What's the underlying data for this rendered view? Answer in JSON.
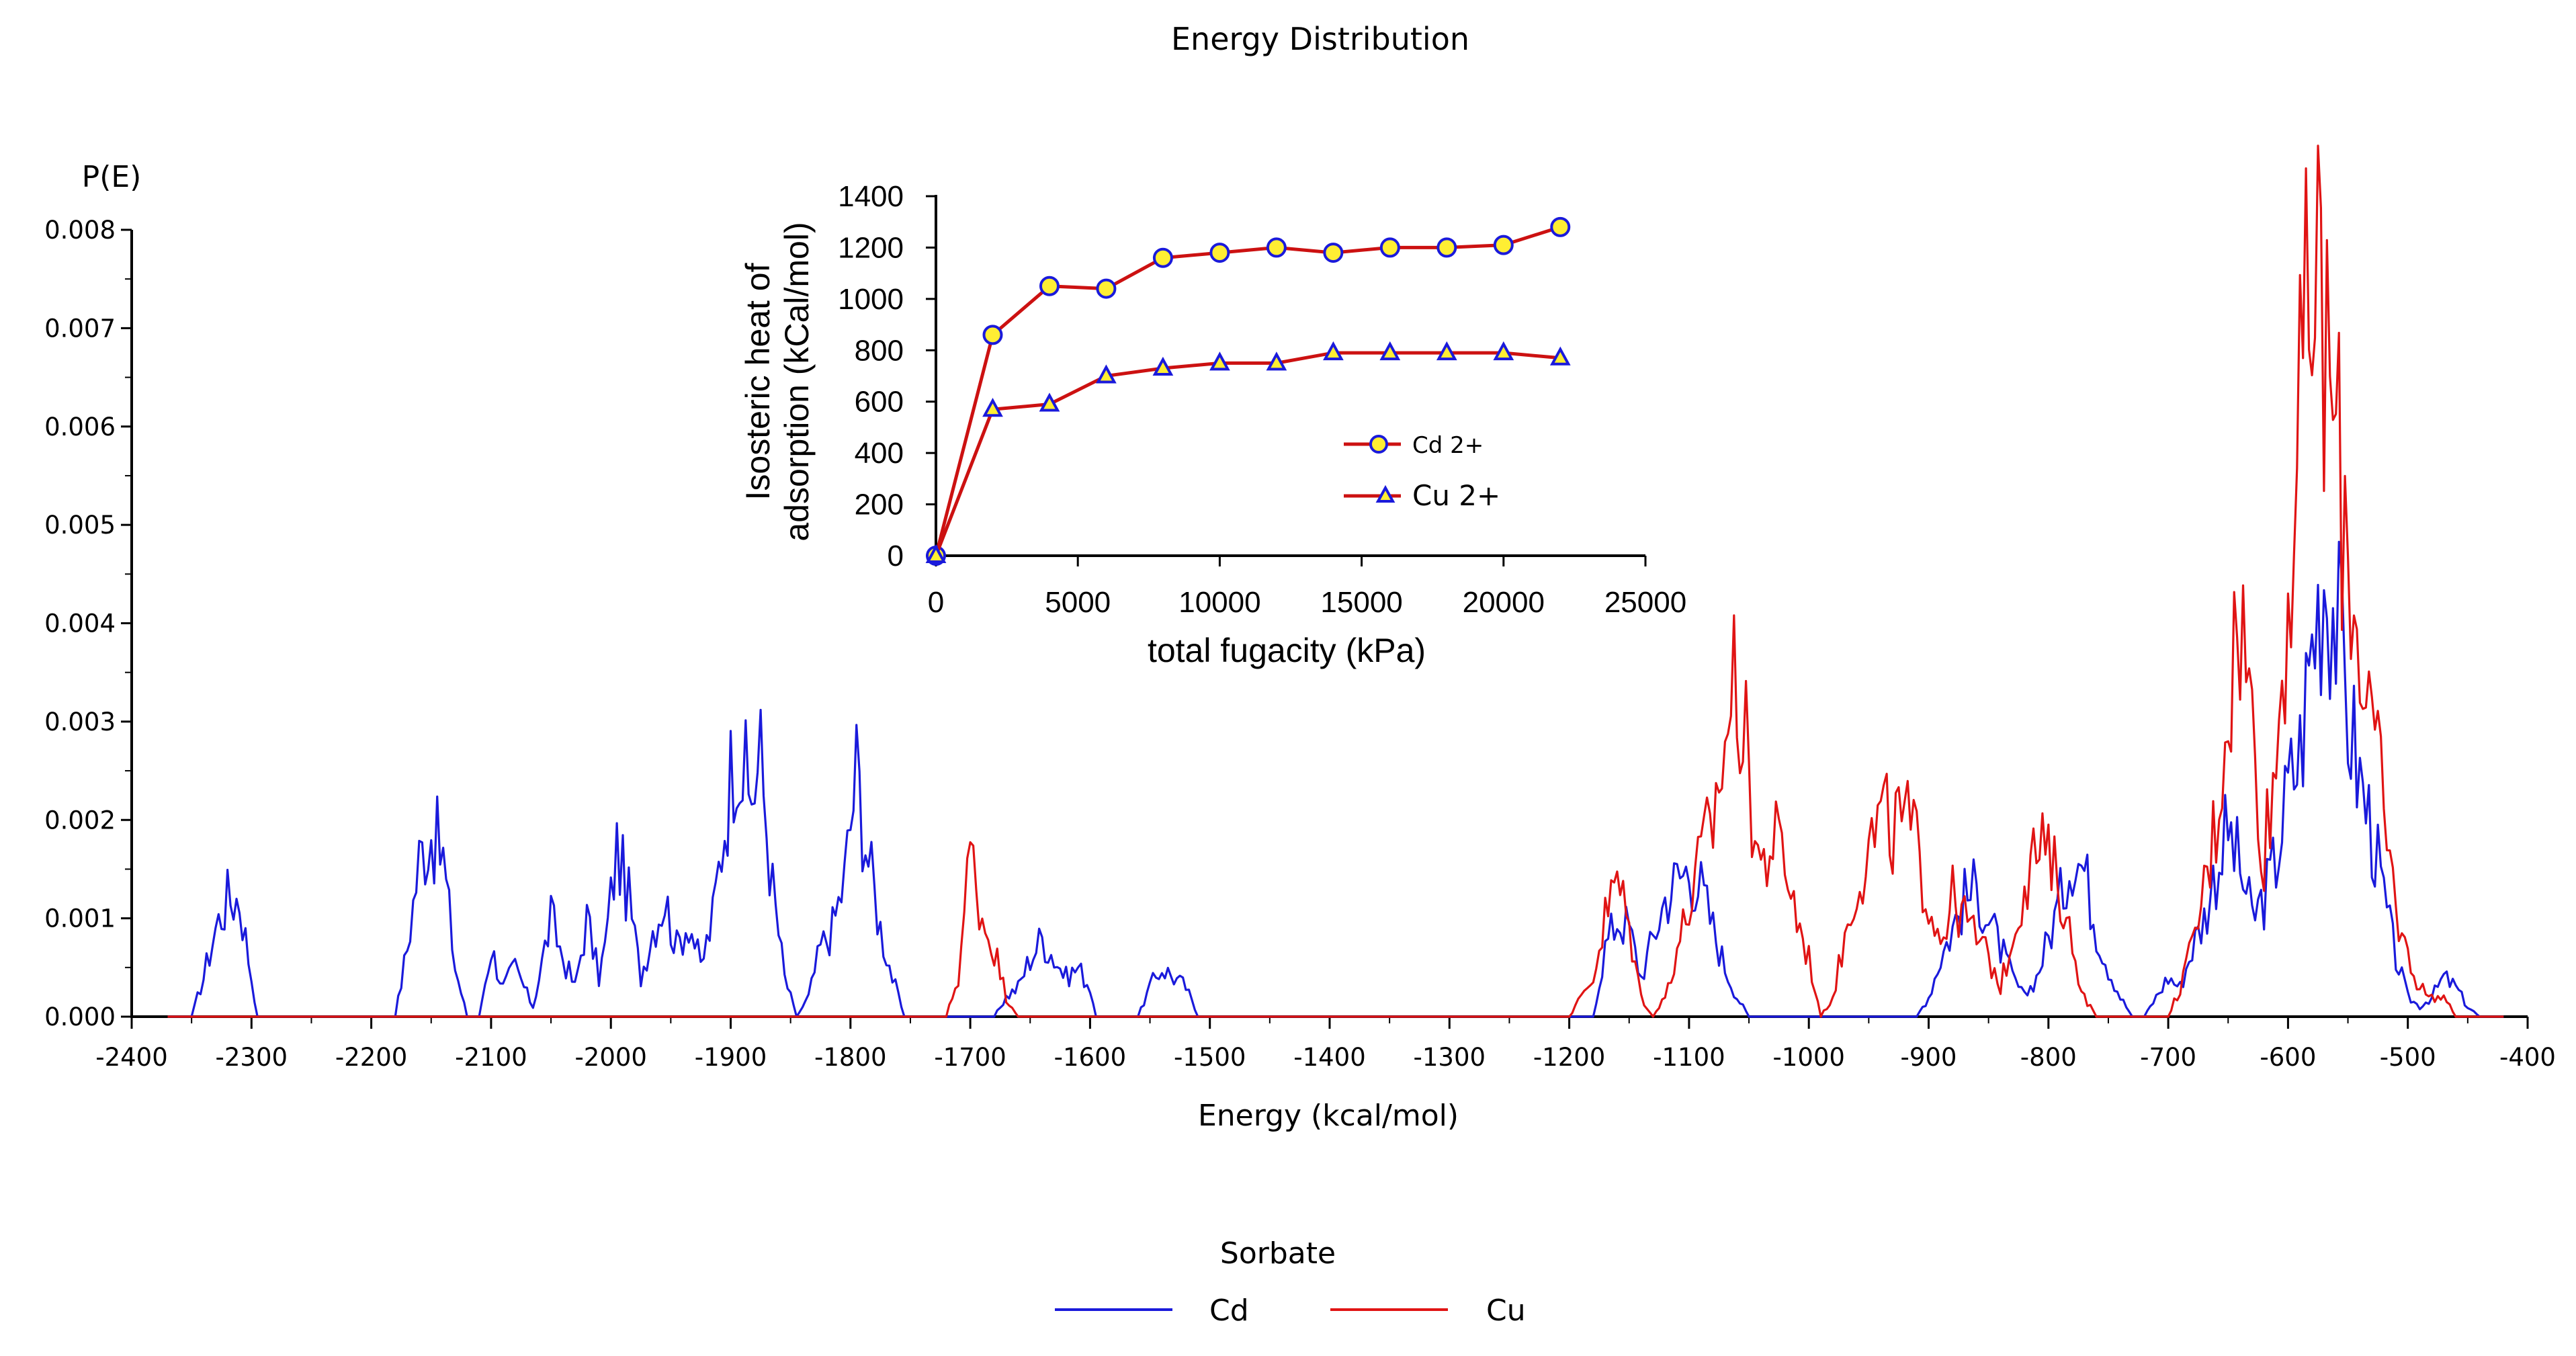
{
  "chart_data": [
    {
      "type": "line",
      "title": "Energy Distribution",
      "xlabel": "Energy (kcal/mol)",
      "ylabel": "P(E)",
      "xlim": [
        -2400,
        -400
      ],
      "ylim": [
        0,
        0.008
      ],
      "x_ticks": [
        -2400,
        -2300,
        -2200,
        -2100,
        -2000,
        -1900,
        -1800,
        -1700,
        -1600,
        -1500,
        -1400,
        -1300,
        -1200,
        -1100,
        -1000,
        -900,
        -800,
        -700,
        -600,
        -500,
        -400
      ],
      "y_ticks": [
        0,
        0.001,
        0.002,
        0.003,
        0.004,
        0.005,
        0.006,
        0.007,
        0.008
      ],
      "y_tick_labels": [
        "0.000",
        "0.001",
        "0.002",
        "0.003",
        "0.004",
        "0.005",
        "0.006",
        "0.007",
        "0.008"
      ],
      "grid": false,
      "legend": {
        "title": "Sorbate",
        "position": "bottom-center",
        "entries": [
          "Cd",
          "Cu"
        ]
      },
      "series": [
        {
          "name": "Cd",
          "color": "#1a1adb",
          "peaks": [
            [
              -2350,
              0.0
            ],
            [
              -2340,
              0.0004
            ],
            [
              -2330,
              0.0009
            ],
            [
              -2320,
              0.0012
            ],
            [
              -2310,
              0.0012
            ],
            [
              -2300,
              0.0004
            ],
            [
              -2295,
              0.0
            ],
            [
              -2180,
              0.0
            ],
            [
              -2170,
              0.0007
            ],
            [
              -2160,
              0.0016
            ],
            [
              -2150,
              0.0019
            ],
            [
              -2140,
              0.0016
            ],
            [
              -2130,
              0.0005
            ],
            [
              -2120,
              0.0
            ],
            [
              -2110,
              0.0
            ],
            [
              -2100,
              0.0007
            ],
            [
              -2090,
              0.0003
            ],
            [
              -2080,
              0.0005
            ],
            [
              -2065,
              0.0001
            ],
            [
              -2060,
              0.0004
            ],
            [
              -2050,
              0.001
            ],
            [
              -2040,
              0.0006
            ],
            [
              -2030,
              0.0003
            ],
            [
              -2020,
              0.001
            ],
            [
              -2010,
              0.0004
            ],
            [
              -2005,
              0.0007
            ],
            [
              -1995,
              0.0017
            ],
            [
              -1985,
              0.0012
            ],
            [
              -1975,
              0.0004
            ],
            [
              -1965,
              0.0009
            ],
            [
              -1955,
              0.0012
            ],
            [
              -1945,
              0.0007
            ],
            [
              -1935,
              0.001
            ],
            [
              -1925,
              0.0005
            ],
            [
              -1915,
              0.001
            ],
            [
              -1905,
              0.002
            ],
            [
              -1895,
              0.0029
            ],
            [
              -1885,
              0.0022
            ],
            [
              -1875,
              0.0026
            ],
            [
              -1865,
              0.0013
            ],
            [
              -1855,
              0.0004
            ],
            [
              -1845,
              0.0
            ],
            [
              -1835,
              0.0002
            ],
            [
              -1825,
              0.0007
            ],
            [
              -1815,
              0.0009
            ],
            [
              -1805,
              0.0014
            ],
            [
              -1795,
              0.0025
            ],
            [
              -1785,
              0.0016
            ],
            [
              -1775,
              0.0009
            ],
            [
              -1765,
              0.0004
            ],
            [
              -1755,
              0.0
            ],
            [
              -1680,
              0.0
            ],
            [
              -1670,
              0.0002
            ],
            [
              -1660,
              0.0003
            ],
            [
              -1650,
              0.0006
            ],
            [
              -1640,
              0.0008
            ],
            [
              -1630,
              0.0006
            ],
            [
              -1620,
              0.0004
            ],
            [
              -1610,
              0.0005
            ],
            [
              -1600,
              0.0003
            ],
            [
              -1595,
              0.0
            ],
            [
              -1560,
              0.0
            ],
            [
              -1550,
              0.0003
            ],
            [
              -1540,
              0.0005
            ],
            [
              -1530,
              0.0004
            ],
            [
              -1520,
              0.0003
            ],
            [
              -1510,
              0.0
            ],
            [
              -1180,
              0.0
            ],
            [
              -1170,
              0.0007
            ],
            [
              -1160,
              0.001
            ],
            [
              -1150,
              0.0009
            ],
            [
              -1140,
              0.0004
            ],
            [
              -1130,
              0.0008
            ],
            [
              -1120,
              0.0012
            ],
            [
              -1110,
              0.0014
            ],
            [
              -1100,
              0.0015
            ],
            [
              -1090,
              0.0013
            ],
            [
              -1080,
              0.0009
            ],
            [
              -1070,
              0.0005
            ],
            [
              -1060,
              0.0002
            ],
            [
              -1050,
              0.0
            ],
            [
              -910,
              0.0
            ],
            [
              -900,
              0.0002
            ],
            [
              -890,
              0.0006
            ],
            [
              -880,
              0.0009
            ],
            [
              -870,
              0.0012
            ],
            [
              -860,
              0.0013
            ],
            [
              -850,
              0.001
            ],
            [
              -840,
              0.0007
            ],
            [
              -830,
              0.0004
            ],
            [
              -820,
              0.0002
            ],
            [
              -810,
              0.0004
            ],
            [
              -800,
              0.0008
            ],
            [
              -790,
              0.0012
            ],
            [
              -780,
              0.0017
            ],
            [
              -770,
              0.0015
            ],
            [
              -760,
              0.0009
            ],
            [
              -750,
              0.0005
            ],
            [
              -740,
              0.0002
            ],
            [
              -730,
              0.0
            ],
            [
              -720,
              0.0
            ],
            [
              -710,
              0.0002
            ],
            [
              -700,
              0.0004
            ],
            [
              -690,
              0.0003
            ],
            [
              -680,
              0.0007
            ],
            [
              -670,
              0.001
            ],
            [
              -660,
              0.0015
            ],
            [
              -650,
              0.0019
            ],
            [
              -640,
              0.0015
            ],
            [
              -630,
              0.001
            ],
            [
              -620,
              0.0012
            ],
            [
              -610,
              0.0016
            ],
            [
              -600,
              0.0023
            ],
            [
              -590,
              0.0027
            ],
            [
              -580,
              0.0038
            ],
            [
              -570,
              0.0046
            ],
            [
              -560,
              0.0041
            ],
            [
              -550,
              0.0031
            ],
            [
              -540,
              0.0024
            ],
            [
              -530,
              0.0019
            ],
            [
              -520,
              0.0012
            ],
            [
              -510,
              0.0006
            ],
            [
              -500,
              0.0002
            ],
            [
              -490,
              0.0001
            ],
            [
              -480,
              0.0002
            ],
            [
              -470,
              0.0004
            ],
            [
              -460,
              0.0003
            ],
            [
              -450,
              0.0001
            ],
            [
              -440,
              0.0
            ],
            [
              -420,
              0.0
            ]
          ]
        },
        {
          "name": "Cu",
          "color": "#e01414",
          "peaks": [
            [
              -1720,
              0.0
            ],
            [
              -1710,
              0.0004
            ],
            [
              -1700,
              0.0017
            ],
            [
              -1690,
              0.001
            ],
            [
              -1680,
              0.0007
            ],
            [
              -1670,
              0.0002
            ],
            [
              -1660,
              0.0
            ],
            [
              -1200,
              0.0
            ],
            [
              -1190,
              0.0002
            ],
            [
              -1180,
              0.0004
            ],
            [
              -1170,
              0.001
            ],
            [
              -1160,
              0.0014
            ],
            [
              -1150,
              0.0009
            ],
            [
              -1140,
              0.0002
            ],
            [
              -1130,
              0.0
            ],
            [
              -1120,
              0.0002
            ],
            [
              -1110,
              0.0007
            ],
            [
              -1100,
              0.0011
            ],
            [
              -1090,
              0.0016
            ],
            [
              -1080,
              0.002
            ],
            [
              -1070,
              0.0028
            ],
            [
              -1060,
              0.0035
            ],
            [
              -1050,
              0.0024
            ],
            [
              -1040,
              0.0015
            ],
            [
              -1030,
              0.0018
            ],
            [
              -1020,
              0.0016
            ],
            [
              -1010,
              0.001
            ],
            [
              -1000,
              0.0006
            ],
            [
              -990,
              0.0
            ],
            [
              -980,
              0.0002
            ],
            [
              -970,
              0.0008
            ],
            [
              -960,
              0.0014
            ],
            [
              -950,
              0.0017
            ],
            [
              -940,
              0.002
            ],
            [
              -930,
              0.0019
            ],
            [
              -920,
              0.002
            ],
            [
              -910,
              0.0017
            ],
            [
              -900,
              0.0012
            ],
            [
              -890,
              0.0008
            ],
            [
              -880,
              0.0012
            ],
            [
              -870,
              0.001
            ],
            [
              -860,
              0.0008
            ],
            [
              -850,
              0.0006
            ],
            [
              -840,
              0.0003
            ],
            [
              -830,
              0.0008
            ],
            [
              -820,
              0.0014
            ],
            [
              -810,
              0.0017
            ],
            [
              -800,
              0.0016
            ],
            [
              -790,
              0.0013
            ],
            [
              -780,
              0.0007
            ],
            [
              -770,
              0.0002
            ],
            [
              -760,
              0.0
            ],
            [
              -700,
              0.0
            ],
            [
              -690,
              0.0003
            ],
            [
              -680,
              0.0007
            ],
            [
              -670,
              0.0013
            ],
            [
              -660,
              0.002
            ],
            [
              -650,
              0.0033
            ],
            [
              -640,
              0.0041
            ],
            [
              -630,
              0.003
            ],
            [
              -620,
              0.0017
            ],
            [
              -610,
              0.0026
            ],
            [
              -600,
              0.0044
            ],
            [
              -590,
              0.006
            ],
            [
              -580,
              0.0075
            ],
            [
              -570,
              0.007
            ],
            [
              -560,
              0.0058
            ],
            [
              -550,
              0.0048
            ],
            [
              -540,
              0.0038
            ],
            [
              -530,
              0.003
            ],
            [
              -520,
              0.002
            ],
            [
              -510,
              0.0011
            ],
            [
              -500,
              0.0006
            ],
            [
              -490,
              0.0003
            ],
            [
              -480,
              0.0002
            ],
            [
              -470,
              0.0002
            ],
            [
              -460,
              0.0
            ]
          ]
        }
      ]
    },
    {
      "type": "line",
      "title": "",
      "xlabel": "total fugacity (kPa)",
      "ylabel_lines": [
        "Isosteric heat of",
        "adsorption (kCal/mol)"
      ],
      "xlim": [
        0,
        25000
      ],
      "ylim": [
        0,
        1400
      ],
      "x_ticks": [
        0,
        5000,
        10000,
        15000,
        20000,
        25000
      ],
      "y_ticks": [
        0,
        200,
        400,
        600,
        800,
        1000,
        1200,
        1400
      ],
      "grid": false,
      "legend": {
        "position": "lower-right",
        "entries": [
          {
            "label": "Cd 2+",
            "marker": "circle"
          },
          {
            "label": "Cu 2+",
            "marker": "triangle"
          }
        ]
      },
      "x": [
        0,
        2000,
        4000,
        6000,
        8000,
        10000,
        12000,
        14000,
        16000,
        18000,
        20000,
        22000
      ],
      "series": [
        {
          "name": "Cd 2+",
          "line_color": "#cc1111",
          "marker_fill": "#ffee33",
          "marker_edge": "#1a1adb",
          "values": [
            0,
            860,
            1050,
            1040,
            1160,
            1180,
            1200,
            1180,
            1200,
            1200,
            1210,
            1280
          ]
        },
        {
          "name": "Cu 2+",
          "line_color": "#cc1111",
          "marker_fill": "#ffee33",
          "marker_edge": "#1a1adb",
          "values": [
            0,
            570,
            590,
            700,
            730,
            750,
            750,
            790,
            790,
            790,
            790,
            770
          ]
        }
      ]
    }
  ]
}
